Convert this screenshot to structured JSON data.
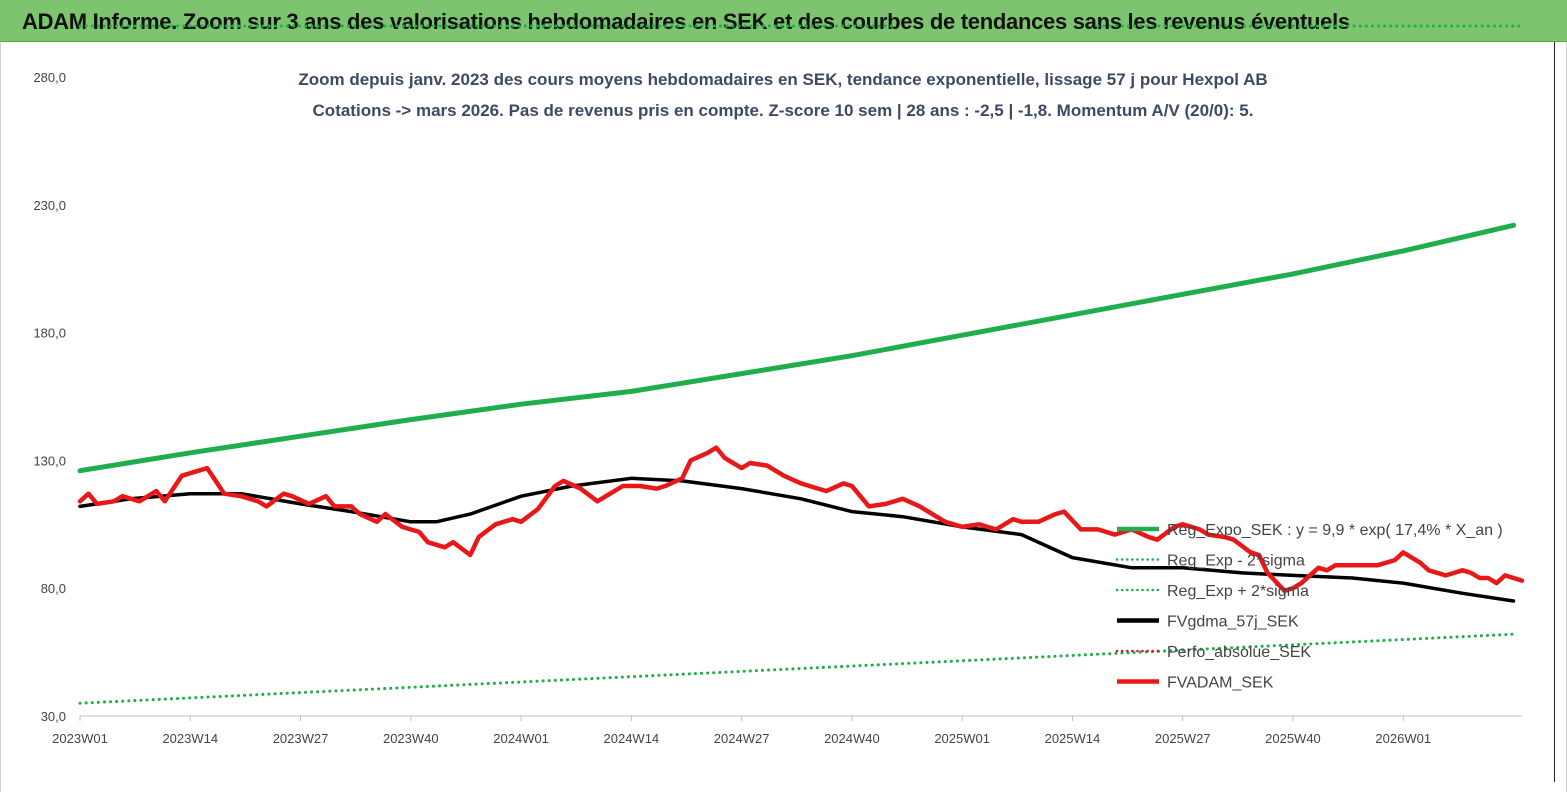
{
  "header": {
    "title": "ADAM Informe. Zoom sur 3 ans des valorisations hebdomadaires en SEK et des courbes de tendances sans les revenus éventuels"
  },
  "colors": {
    "banner": "#7dc46f",
    "trend": "#1fae4b",
    "sigma": "#1fae4b",
    "average": "#000000",
    "perf": "#d01c1c",
    "price": "#e81818"
  },
  "chart_data": {
    "type": "line",
    "title_lines": [
      "Zoom depuis janv. 2023 des cours moyens hebdomadaires en SEK, tendance exponentielle, lissage 57 j pour Hexpol AB",
      "Cotations -> mars 2026. Pas de revenus pris en  compte. Z-score 10 sem  | 28 ans : -2,5 | -1,8. Momentum A/V (20/0): 5."
    ],
    "ylim": [
      30,
      300
    ],
    "yticks": [
      "30,0",
      "80,0",
      "130,0",
      "180,0",
      "230,0",
      "280,0"
    ],
    "ytick_values": [
      30,
      80,
      130,
      180,
      230,
      280
    ],
    "grid": false,
    "legend_position": "right",
    "x_weeks": 170,
    "xticks": [
      {
        "label": "2023W01",
        "week": 0
      },
      {
        "label": "2023W14",
        "week": 13
      },
      {
        "label": "2023W27",
        "week": 26
      },
      {
        "label": "2023W40",
        "week": 39
      },
      {
        "label": "2024W01",
        "week": 52
      },
      {
        "label": "2024W14",
        "week": 65
      },
      {
        "label": "2024W27",
        "week": 78
      },
      {
        "label": "2024W40",
        "week": 91
      },
      {
        "label": "2025W01",
        "week": 104
      },
      {
        "label": "2025W14",
        "week": 117
      },
      {
        "label": "2025W27",
        "week": 130
      },
      {
        "label": "2025W40",
        "week": 143
      },
      {
        "label": "2026W01",
        "week": 156
      }
    ],
    "series": [
      {
        "name": "Reg_Expo_SEK : y = 9,9 * exp( 17,4% *  X_an )",
        "style": "solid-thick",
        "color": "#1fae4b",
        "points": [
          [
            0,
            126
          ],
          [
            13,
            133
          ],
          [
            26,
            139.5
          ],
          [
            39,
            146
          ],
          [
            52,
            152
          ],
          [
            65,
            157
          ],
          [
            78,
            164
          ],
          [
            91,
            171
          ],
          [
            104,
            179
          ],
          [
            117,
            187
          ],
          [
            130,
            195
          ],
          [
            143,
            203
          ],
          [
            156,
            212
          ],
          [
            169,
            222
          ]
        ]
      },
      {
        "name": "Reg_Exp - 2*sigma",
        "style": "dotted",
        "color": "#1fae4b",
        "points": [
          [
            0,
            35
          ],
          [
            169,
            62
          ]
        ]
      },
      {
        "name": "Reg_Exp + 2*sigma",
        "style": "dotted",
        "color": "#1fae4b",
        "points": [
          [
            0,
            300
          ],
          [
            169,
            300
          ]
        ]
      },
      {
        "name": "FVgdma_57j_SEK",
        "style": "solid",
        "color": "#000000",
        "points": [
          [
            0,
            112
          ],
          [
            6,
            115
          ],
          [
            13,
            117
          ],
          [
            19,
            117
          ],
          [
            26,
            113
          ],
          [
            32,
            110
          ],
          [
            39,
            106
          ],
          [
            42,
            106
          ],
          [
            46,
            109
          ],
          [
            52,
            116
          ],
          [
            58,
            120
          ],
          [
            65,
            123
          ],
          [
            71,
            122
          ],
          [
            78,
            119
          ],
          [
            85,
            115
          ],
          [
            91,
            110
          ],
          [
            97,
            108
          ],
          [
            104,
            104
          ],
          [
            111,
            101
          ],
          [
            117,
            92
          ],
          [
            124,
            88
          ],
          [
            130,
            88
          ],
          [
            137,
            86
          ],
          [
            143,
            85
          ],
          [
            150,
            84
          ],
          [
            156,
            82
          ],
          [
            163,
            78
          ],
          [
            169,
            75
          ]
        ]
      },
      {
        "name": "Perfo_absolue_SEK",
        "style": "dotted",
        "color": "#d01c1c",
        "points": []
      },
      {
        "name": "FVADAM_SEK",
        "style": "solid-thick",
        "color": "#e81818",
        "points": [
          [
            0,
            114
          ],
          [
            1,
            117
          ],
          [
            2,
            113
          ],
          [
            4,
            114
          ],
          [
            5,
            116
          ],
          [
            7,
            114
          ],
          [
            9,
            118
          ],
          [
            10,
            114
          ],
          [
            12,
            124
          ],
          [
            13,
            125
          ],
          [
            15,
            127
          ],
          [
            17,
            117
          ],
          [
            19,
            116
          ],
          [
            21,
            114
          ],
          [
            22,
            112
          ],
          [
            24,
            117
          ],
          [
            25,
            116
          ],
          [
            27,
            113
          ],
          [
            29,
            116
          ],
          [
            30,
            112
          ],
          [
            32,
            112
          ],
          [
            33,
            109
          ],
          [
            35,
            106
          ],
          [
            36,
            109
          ],
          [
            38,
            104
          ],
          [
            40,
            102
          ],
          [
            41,
            98
          ],
          [
            43,
            96
          ],
          [
            44,
            98
          ],
          [
            46,
            93
          ],
          [
            47,
            100
          ],
          [
            49,
            105
          ],
          [
            51,
            107
          ],
          [
            52,
            106
          ],
          [
            54,
            111
          ],
          [
            56,
            120
          ],
          [
            57,
            122
          ],
          [
            59,
            119
          ],
          [
            61,
            114
          ],
          [
            62,
            116
          ],
          [
            64,
            120
          ],
          [
            66,
            120
          ],
          [
            68,
            119
          ],
          [
            69,
            120
          ],
          [
            71,
            123
          ],
          [
            72,
            130
          ],
          [
            74,
            133
          ],
          [
            75,
            135
          ],
          [
            76,
            131
          ],
          [
            78,
            127
          ],
          [
            79,
            129
          ],
          [
            81,
            128
          ],
          [
            83,
            124
          ],
          [
            85,
            121
          ],
          [
            87,
            119
          ],
          [
            88,
            118
          ],
          [
            90,
            121
          ],
          [
            91,
            120
          ],
          [
            93,
            112
          ],
          [
            95,
            113
          ],
          [
            97,
            115
          ],
          [
            99,
            112
          ],
          [
            100,
            110
          ],
          [
            102,
            106
          ],
          [
            104,
            104
          ],
          [
            106,
            105
          ],
          [
            107,
            104
          ],
          [
            108,
            103
          ],
          [
            110,
            107
          ],
          [
            111,
            106
          ],
          [
            113,
            106
          ],
          [
            115,
            109
          ],
          [
            116,
            110
          ],
          [
            118,
            103
          ],
          [
            120,
            103
          ],
          [
            121,
            102
          ],
          [
            122,
            101
          ],
          [
            124,
            103
          ],
          [
            126,
            100
          ],
          [
            127,
            99
          ],
          [
            129,
            104
          ],
          [
            130,
            105
          ],
          [
            132,
            103
          ],
          [
            133,
            101
          ],
          [
            135,
            100
          ],
          [
            136,
            99
          ],
          [
            138,
            94
          ],
          [
            139,
            93
          ],
          [
            140,
            86
          ],
          [
            142,
            79
          ],
          [
            143,
            80
          ],
          [
            144,
            82
          ],
          [
            146,
            88
          ],
          [
            147,
            87
          ],
          [
            148,
            89
          ],
          [
            150,
            89
          ],
          [
            152,
            89
          ],
          [
            153,
            89
          ],
          [
            155,
            91
          ],
          [
            156,
            94
          ],
          [
            157,
            92
          ],
          [
            158,
            90
          ],
          [
            159,
            87
          ],
          [
            161,
            85
          ],
          [
            162,
            86
          ],
          [
            163,
            87
          ],
          [
            164,
            86
          ],
          [
            165,
            84
          ],
          [
            166,
            84
          ],
          [
            167,
            82
          ],
          [
            168,
            85
          ],
          [
            169,
            84
          ],
          [
            170,
            83
          ]
        ]
      }
    ]
  },
  "legend": {
    "items": [
      {
        "label": "Reg_Expo_SEK : y = 9,9 * exp( 17,4% *  X_an )",
        "color": "#1fae4b",
        "style": "solid"
      },
      {
        "label": "Reg_Exp - 2*sigma",
        "color": "#1fae4b",
        "style": "dotted"
      },
      {
        "label": "Reg_Exp + 2*sigma",
        "color": "#1fae4b",
        "style": "dotted"
      },
      {
        "label": "FVgdma_57j_SEK",
        "color": "#000000",
        "style": "solid"
      },
      {
        "label": "Perfo_absolue_SEK",
        "color": "#d01c1c",
        "style": "dotted"
      },
      {
        "label": "FVADAM_SEK",
        "color": "#e81818",
        "style": "solid"
      }
    ]
  }
}
